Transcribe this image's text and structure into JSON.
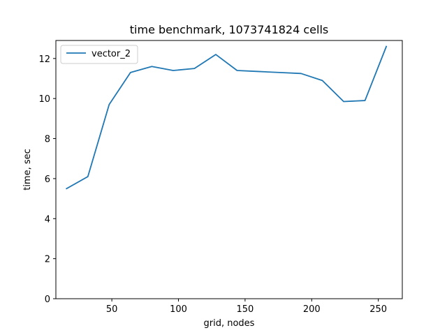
{
  "chart_data": {
    "type": "line",
    "title": "time benchmark, 1073741824 cells",
    "xlabel": "grid, nodes",
    "ylabel": "time, sec",
    "xlim": [
      8,
      268
    ],
    "ylim": [
      0,
      12.9
    ],
    "xticks": [
      50,
      100,
      150,
      200,
      250
    ],
    "yticks": [
      0,
      2,
      4,
      6,
      8,
      10,
      12
    ],
    "grid": false,
    "legend_position": "top-left",
    "series": [
      {
        "name": "vector_2",
        "color": "#1f77b4",
        "x": [
          16,
          32,
          48,
          64,
          80,
          96,
          112,
          128,
          144,
          160,
          176,
          192,
          208,
          224,
          240,
          256
        ],
        "y": [
          5.5,
          6.1,
          9.7,
          11.3,
          11.6,
          11.4,
          11.5,
          12.2,
          11.4,
          11.35,
          11.3,
          11.25,
          10.9,
          9.85,
          9.9,
          12.6
        ]
      }
    ]
  }
}
